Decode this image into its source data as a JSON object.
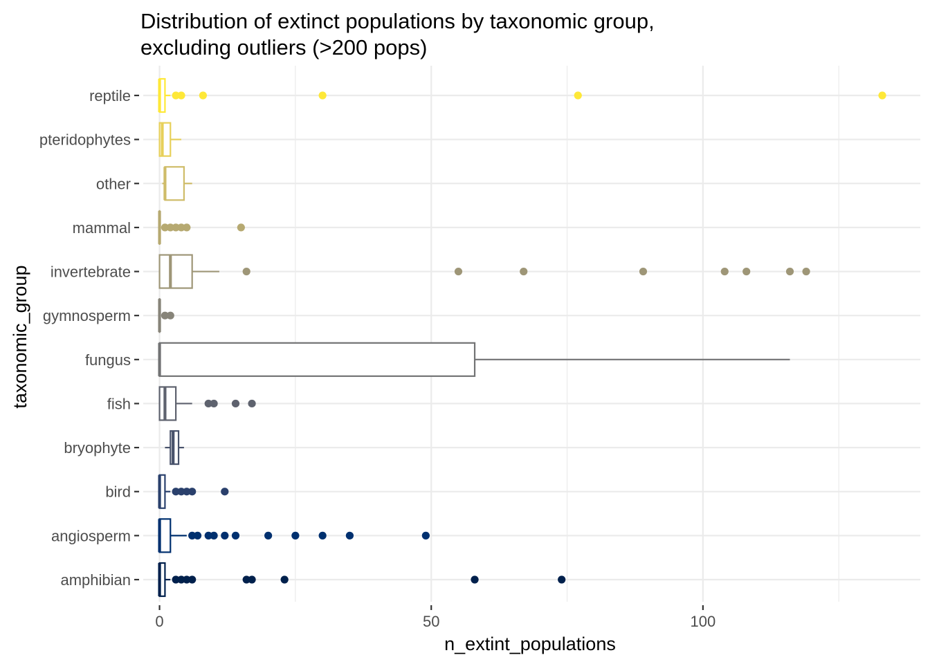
{
  "chart_data": {
    "type": "boxplot",
    "orientation": "horizontal",
    "title": [
      "Distribution of extinct populations by taxonomic group,",
      "excluding outliers (>200 pops)"
    ],
    "xlabel": "n_extint_populations",
    "ylabel": "taxonomic_group",
    "xlim": [
      -3,
      140
    ],
    "xticks": [
      0,
      50,
      100
    ],
    "xtick_labels": [
      "0",
      "50",
      "100"
    ],
    "grid": true,
    "legend": "none",
    "categories": [
      "amphibian",
      "angiosperm",
      "bird",
      "bryophyte",
      "fish",
      "fungus",
      "gymnosperm",
      "invertebrate",
      "mammal",
      "other",
      "pteridophytes",
      "reptile"
    ],
    "colors": [
      "#00204c",
      "#00306f",
      "#2a406c",
      "#48526b",
      "#5e626e",
      "#727374",
      "#878479",
      "#9e9677",
      "#b6a971",
      "#cfbc69",
      "#e7d05a",
      "#fee838"
    ],
    "series": [
      {
        "name": "amphibian",
        "min": 0,
        "q1": 0,
        "median": 0,
        "q3": 1,
        "max": 2,
        "outliers": [
          3,
          4,
          5,
          6,
          16,
          17,
          23,
          58,
          74
        ]
      },
      {
        "name": "angiosperm",
        "min": 0,
        "q1": 0,
        "median": 0,
        "q3": 2,
        "max": 5,
        "outliers": [
          6,
          7,
          9,
          10,
          12,
          14,
          20,
          25,
          30,
          35,
          49
        ]
      },
      {
        "name": "bird",
        "min": 0,
        "q1": 0,
        "median": 0,
        "q3": 1,
        "max": 2,
        "outliers": [
          3,
          4,
          5,
          6,
          12
        ]
      },
      {
        "name": "bryophyte",
        "min": 1,
        "q1": 2,
        "median": 2.5,
        "q3": 3.5,
        "max": 4.5,
        "outliers": []
      },
      {
        "name": "fish",
        "min": 0,
        "q1": 0,
        "median": 1,
        "q3": 3,
        "max": 6,
        "outliers": [
          9,
          10,
          14,
          17
        ]
      },
      {
        "name": "fungus",
        "min": 0,
        "q1": 0,
        "median": 0,
        "q3": 58,
        "max": 116,
        "outliers": []
      },
      {
        "name": "gymnosperm",
        "min": 0,
        "q1": 0,
        "median": 0,
        "q3": 0,
        "max": 0,
        "outliers": [
          1,
          2
        ]
      },
      {
        "name": "invertebrate",
        "min": 0,
        "q1": 0,
        "median": 2,
        "q3": 6,
        "max": 11,
        "outliers": [
          16,
          55,
          67,
          89,
          104,
          108,
          116,
          119
        ]
      },
      {
        "name": "mammal",
        "min": 0,
        "q1": 0,
        "median": 0,
        "q3": 0,
        "max": 0,
        "outliers": [
          1,
          2,
          3,
          4,
          5,
          15
        ]
      },
      {
        "name": "other",
        "min": 0.5,
        "q1": 1,
        "median": 1,
        "q3": 4.5,
        "max": 6,
        "outliers": []
      },
      {
        "name": "pteridophytes",
        "min": 0,
        "q1": 0,
        "median": 0.5,
        "q3": 2,
        "max": 4,
        "outliers": []
      },
      {
        "name": "reptile",
        "min": 0,
        "q1": 0,
        "median": 0,
        "q3": 1,
        "max": 2,
        "outliers": [
          3,
          4,
          8,
          30,
          77,
          133
        ]
      }
    ]
  }
}
